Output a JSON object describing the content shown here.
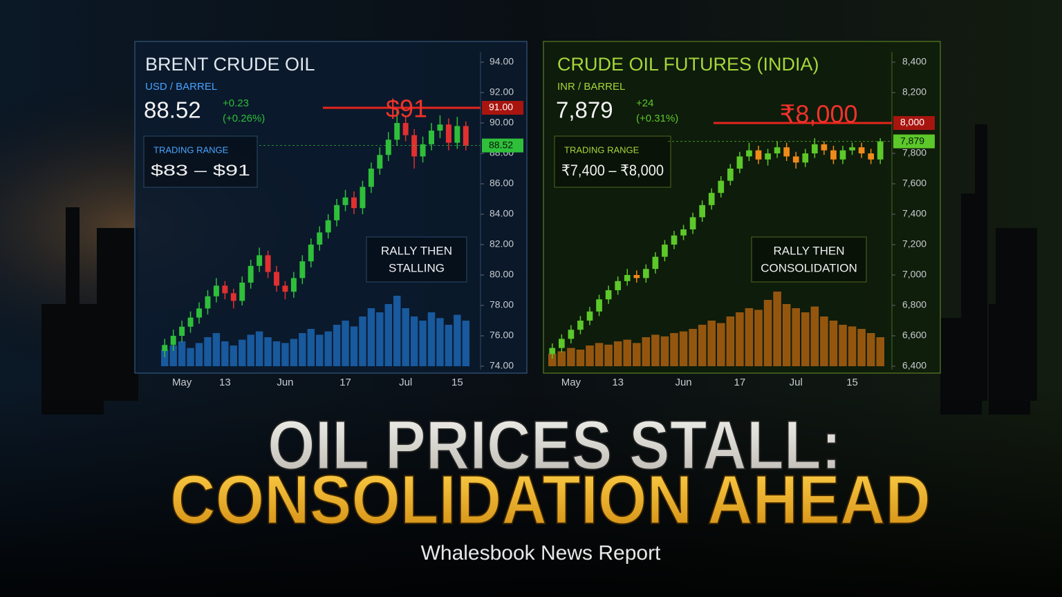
{
  "chart_data": [
    {
      "type": "candlestick",
      "title": "BRENT CRUDE OIL",
      "unit": "USD / BARREL",
      "last": {
        "value": 88.52,
        "label": "88.52"
      },
      "change": "+0.23",
      "change_pct": "(+0.26%)",
      "range_label": "TRADING RANGE",
      "range": "$83 – $91",
      "resistance": {
        "value": 91,
        "label": "91.00"
      },
      "resistance_annotation": "$91",
      "annotation": [
        "RALLY THEN",
        "STALLING"
      ],
      "title_color": "#dfe6ee",
      "unit_color": "#4aa3ff",
      "up_color": "#2fbf3a",
      "down_color": "#e03030",
      "volume_color": "#1f6fc4",
      "panel_color": "#0a1a2e",
      "border_color": "#2a4a6a",
      "ylim": [
        74,
        94
      ],
      "yticks": [
        {
          "value": 74,
          "label": "74.00"
        },
        {
          "value": 76,
          "label": "76.00"
        },
        {
          "value": 78,
          "label": "78.00"
        },
        {
          "value": 80,
          "label": "80.00"
        },
        {
          "value": 82,
          "label": "82.00"
        },
        {
          "value": 84,
          "label": "84.00"
        },
        {
          "value": 86,
          "label": "86.00"
        },
        {
          "value": 88,
          "label": "88.00"
        },
        {
          "value": 90,
          "label": "90.00"
        },
        {
          "value": 92,
          "label": "92.00"
        },
        {
          "value": 94,
          "label": "94.00"
        }
      ],
      "categories": [
        null,
        null,
        "May",
        null,
        null,
        null,
        null,
        "13",
        null,
        null,
        null,
        null,
        null,
        null,
        "Jun",
        null,
        null,
        null,
        null,
        null,
        null,
        "17",
        null,
        null,
        null,
        null,
        null,
        null,
        "Jul",
        null,
        null,
        null,
        null,
        null,
        "15",
        null
      ],
      "open": [
        75.0,
        75.4,
        76.0,
        76.6,
        77.2,
        77.8,
        78.6,
        79.3,
        78.8,
        78.3,
        79.5,
        80.6,
        81.3,
        80.2,
        79.3,
        78.9,
        79.8,
        80.9,
        82.0,
        82.8,
        83.6,
        84.6,
        85.1,
        84.4,
        85.8,
        87.0,
        87.9,
        88.9,
        90.0,
        89.2,
        87.8,
        88.6,
        89.5,
        89.9,
        88.7,
        89.8
      ],
      "high": [
        75.8,
        76.4,
        77.0,
        77.6,
        78.2,
        79.0,
        79.8,
        79.6,
        79.1,
        79.9,
        81.0,
        81.8,
        81.6,
        80.6,
        79.6,
        80.2,
        81.3,
        82.4,
        83.2,
        84.0,
        85.0,
        85.6,
        85.5,
        86.2,
        87.4,
        88.4,
        89.4,
        90.8,
        90.5,
        89.6,
        89.1,
        90.0,
        90.5,
        90.3,
        90.4,
        90.1
      ],
      "low": [
        74.6,
        75.0,
        75.6,
        76.2,
        76.8,
        77.4,
        78.2,
        78.4,
        77.8,
        78.0,
        79.1,
        80.2,
        79.8,
        78.9,
        78.4,
        78.5,
        79.4,
        80.5,
        81.6,
        82.4,
        83.2,
        84.2,
        84.0,
        84.0,
        85.4,
        86.6,
        87.5,
        88.5,
        88.8,
        87.0,
        87.4,
        88.2,
        89.0,
        88.2,
        88.3,
        88.2
      ],
      "close": [
        75.4,
        76.0,
        76.6,
        77.2,
        77.8,
        78.6,
        79.3,
        78.8,
        78.3,
        79.5,
        80.6,
        81.3,
        80.2,
        79.3,
        78.9,
        79.8,
        80.9,
        82.0,
        82.8,
        83.6,
        84.6,
        85.1,
        84.4,
        85.8,
        87.0,
        87.9,
        88.9,
        90.0,
        89.2,
        87.8,
        88.6,
        89.5,
        89.9,
        88.7,
        89.8,
        88.52
      ],
      "volume": [
        20,
        25,
        30,
        22,
        28,
        35,
        40,
        30,
        25,
        32,
        38,
        42,
        35,
        30,
        28,
        33,
        40,
        45,
        38,
        42,
        50,
        55,
        48,
        60,
        70,
        65,
        75,
        85,
        70,
        60,
        55,
        65,
        58,
        50,
        62,
        55
      ]
    },
    {
      "type": "candlestick",
      "title": "CRUDE OIL FUTURES (INDIA)",
      "unit": "INR / BARREL",
      "last": {
        "value": 7879,
        "label": "7,879"
      },
      "change": "+24",
      "change_pct": "(+0.31%)",
      "range_label": "TRADING RANGE",
      "range": "₹7,400 – ₹8,000",
      "resistance": {
        "value": 8000,
        "label": "8,000"
      },
      "resistance_annotation": "₹8,000",
      "annotation": [
        "RALLY THEN",
        "CONSOLIDATION"
      ],
      "title_color": "#a6d63a",
      "unit_color": "#a6d63a",
      "up_color": "#5cc82a",
      "down_color": "#f08a1a",
      "volume_color": "#c26a12",
      "panel_color": "#0f1e0a",
      "border_color": "#4a6a20",
      "ylim": [
        6400,
        8400
      ],
      "yticks": [
        {
          "value": 6400,
          "label": "6,400"
        },
        {
          "value": 6600,
          "label": "6,600"
        },
        {
          "value": 6800,
          "label": "6,800"
        },
        {
          "value": 7000,
          "label": "7,000"
        },
        {
          "value": 7200,
          "label": "7,200"
        },
        {
          "value": 7400,
          "label": "7,400"
        },
        {
          "value": 7600,
          "label": "7,600"
        },
        {
          "value": 7800,
          "label": "7,800"
        },
        {
          "value": 8200,
          "label": "8,200"
        },
        {
          "value": 8400,
          "label": "8,400"
        }
      ],
      "categories": [
        null,
        null,
        "May",
        null,
        null,
        null,
        null,
        "13",
        null,
        null,
        null,
        null,
        null,
        null,
        "Jun",
        null,
        null,
        null,
        null,
        null,
        "17",
        null,
        null,
        null,
        null,
        null,
        "Jul",
        null,
        null,
        null,
        null,
        null,
        "15",
        null,
        null,
        null
      ],
      "open": [
        6480,
        6520,
        6580,
        6640,
        6700,
        6760,
        6840,
        6900,
        6960,
        7000,
        6980,
        7040,
        7120,
        7200,
        7260,
        7300,
        7380,
        7460,
        7540,
        7620,
        7700,
        7780,
        7820,
        7760,
        7800,
        7840,
        7780,
        7740,
        7800,
        7860,
        7820,
        7760,
        7820,
        7840,
        7800,
        7760
      ],
      "high": [
        6550,
        6610,
        6670,
        6730,
        6790,
        6870,
        6930,
        6990,
        7040,
        7030,
        7070,
        7150,
        7230,
        7290,
        7330,
        7410,
        7490,
        7570,
        7650,
        7730,
        7810,
        7870,
        7850,
        7830,
        7880,
        7870,
        7810,
        7830,
        7900,
        7880,
        7850,
        7850,
        7870,
        7870,
        7830,
        7900
      ],
      "low": [
        6450,
        6490,
        6550,
        6610,
        6670,
        6730,
        6810,
        6870,
        6930,
        6950,
        6950,
        7010,
        7090,
        7170,
        7230,
        7270,
        7350,
        7430,
        7510,
        7590,
        7670,
        7750,
        7730,
        7720,
        7770,
        7750,
        7700,
        7710,
        7770,
        7790,
        7730,
        7730,
        7790,
        7770,
        7730,
        7730
      ],
      "close": [
        6520,
        6580,
        6640,
        6700,
        6760,
        6840,
        6900,
        6960,
        7000,
        6980,
        7040,
        7120,
        7200,
        7260,
        7300,
        7380,
        7460,
        7540,
        7620,
        7700,
        7780,
        7820,
        7760,
        7800,
        7840,
        7780,
        7740,
        7800,
        7860,
        7820,
        7760,
        7820,
        7840,
        7800,
        7760,
        7879
      ],
      "volume": [
        15,
        18,
        22,
        20,
        25,
        28,
        26,
        30,
        32,
        28,
        35,
        38,
        36,
        40,
        42,
        45,
        50,
        55,
        52,
        60,
        65,
        70,
        68,
        80,
        90,
        75,
        70,
        65,
        72,
        60,
        55,
        50,
        48,
        45,
        40,
        35
      ]
    }
  ],
  "headline": [
    "OIL PRICES STALL:",
    "CONSOLIDATION AHEAD"
  ],
  "footer": "Whalesbook News Report"
}
